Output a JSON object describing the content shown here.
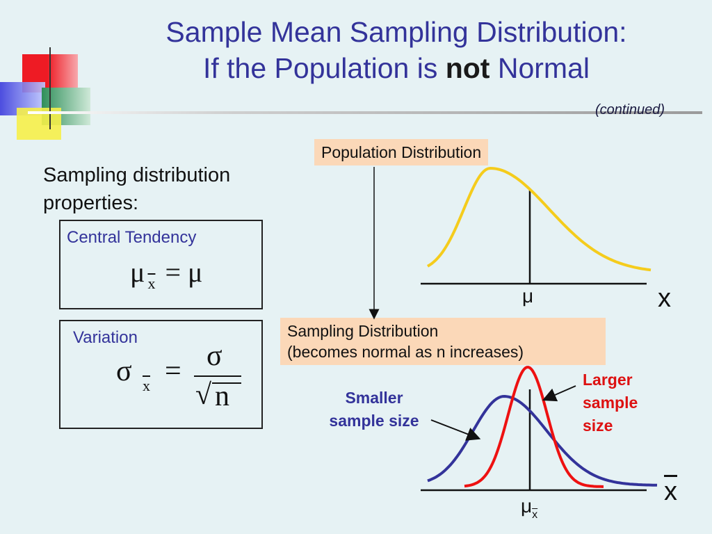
{
  "slide": {
    "title_line1": "Sample Mean Sampling Distribution:",
    "title_line2_pre": "If the Population is ",
    "title_line2_bold": "not",
    "title_line2_post": " Normal",
    "continued": "(continued)"
  },
  "properties": {
    "heading_line1": "Sampling distribution",
    "heading_line2": "properties:",
    "central": {
      "label": "Central Tendency",
      "lhs": "μ",
      "lhs_sub": "x",
      "eq": "=",
      "rhs": "μ"
    },
    "variation": {
      "label": "Variation",
      "lhs": "σ",
      "lhs_sub": "x",
      "eq": "=",
      "numerator": "σ",
      "denominator": "n"
    }
  },
  "population": {
    "label": "Population Distribution",
    "mu_label": "μ",
    "axis_label": "x"
  },
  "sampling": {
    "label_line1": "Sampling Distribution",
    "label_line2": "(becomes normal as n increases)",
    "smaller_line1": "Smaller",
    "smaller_line2": "sample size",
    "larger_line1": "Larger",
    "larger_line2": "sample",
    "larger_line3": "size",
    "mu_label": "μ",
    "mu_sub": "x",
    "axis_label": "x"
  },
  "colors": {
    "title": "#33339a",
    "population_curve": "#f5cc1c",
    "small_n_curve": "#33339a",
    "large_n_curve": "#ee1111",
    "callout_bg": "#fbd8b8"
  }
}
